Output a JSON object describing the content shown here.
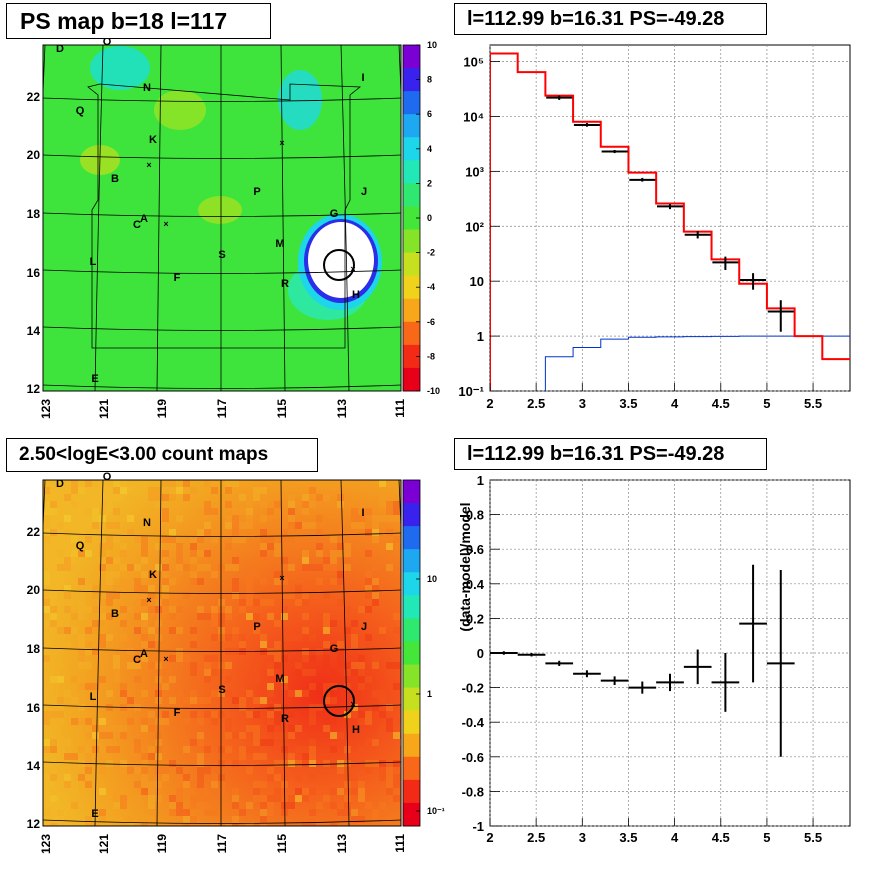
{
  "colors": {
    "map_background": "#3ee43c",
    "count_background": "#f08a28",
    "hist_total": "#ff0000",
    "hist_data": "#000000",
    "hist_blue": "#0033cc",
    "grid": "#888888"
  },
  "colorbar_psmap": {
    "stops": [
      "#7a00d4",
      "#3a22ee",
      "#1f6bf0",
      "#1ea8f2",
      "#1ed6ea",
      "#22e8b8",
      "#2ee870",
      "#44e63a",
      "#86e428",
      "#c6e020",
      "#f0d21c",
      "#f8a61a",
      "#f86818",
      "#f22a16",
      "#e8001a"
    ],
    "labels": [
      "10",
      "8",
      "6",
      "4",
      "2",
      "0",
      "-2",
      "-4",
      "-6",
      "-8",
      "-10"
    ]
  },
  "colorbar_counts": {
    "stops": [
      "#7a00d4",
      "#3a22ee",
      "#1f6bf0",
      "#1ea8f2",
      "#1ed6ea",
      "#22e8b8",
      "#2ee870",
      "#44e63a",
      "#86e428",
      "#c6e020",
      "#f0d21c",
      "#f8a61a",
      "#f86818",
      "#f22a16",
      "#e8001a"
    ],
    "labels": [
      "10",
      "1",
      "10⁻¹"
    ]
  },
  "map_axes": {
    "x_ticks": [
      "123",
      "121",
      "119",
      "117",
      "115",
      "113",
      "111"
    ],
    "y_ticks": [
      "22",
      "20",
      "18",
      "16",
      "14",
      "12"
    ]
  },
  "map_labels": [
    "D",
    "O",
    "N",
    "I",
    "Q",
    "K",
    "B",
    "J",
    "P",
    "G",
    "A",
    "C",
    "M",
    "L",
    "S",
    "F",
    "R",
    "H",
    "E"
  ],
  "panels": {
    "tl_title": "PS map b=18 l=117",
    "tr_title": "l=112.99 b=16.31 PS=-49.28",
    "bl_title": "2.50<logE<3.00 count maps",
    "br_title": "l=112.99 b=16.31 PS=-49.28"
  },
  "chart_data": [
    {
      "type": "heatmap",
      "title": "PS map b=18 l=117",
      "xlabel": "",
      "ylabel": "",
      "xlim": [
        123,
        111
      ],
      "ylim": [
        12,
        24
      ],
      "zlim": [
        -10,
        10
      ],
      "source": {
        "l": 112.99,
        "b": 16.31
      }
    },
    {
      "type": "line",
      "title": "l=112.99 b=16.31 PS=-49.28",
      "xlim": [
        2,
        5.9
      ],
      "ylim": [
        0.1,
        200000
      ],
      "yscale": "log",
      "x_ticks": [
        "2",
        "2.5",
        "3",
        "3.5",
        "4",
        "4.5",
        "5",
        "5.5"
      ],
      "y_ticks": [
        "10⁻¹",
        "1",
        "10",
        "10²",
        "10³",
        "10⁴",
        "10⁵"
      ],
      "series": [
        {
          "kind": "step",
          "edges": [
            2.0,
            2.3,
            2.6,
            2.9,
            3.2,
            3.5,
            3.8,
            4.1,
            4.4,
            4.7,
            5.0,
            5.3,
            5.6,
            5.9
          ],
          "values": [
            140000,
            64000,
            24000,
            8000,
            2800,
            950,
            260,
            80,
            25,
            9,
            3.2,
            1.0,
            0.38
          ]
        },
        {
          "kind": "step-blue",
          "edges": [
            2.6,
            2.9,
            3.2,
            3.5,
            3.8,
            4.1,
            4.4,
            4.7,
            5.0,
            5.3,
            5.6,
            5.9
          ],
          "values": [
            0.42,
            0.62,
            0.88,
            0.95,
            0.97,
            0.98,
            0.99,
            1.0,
            1.0,
            1.0,
            1.0
          ]
        },
        {
          "kind": "points",
          "x": [
            2.75,
            3.05,
            3.35,
            3.65,
            3.95,
            4.25,
            4.55,
            4.85,
            5.15
          ],
          "y": [
            22000,
            7000,
            2300,
            700,
            230,
            70,
            22,
            10.5,
            2.8
          ],
          "yerr_low": [
            20000,
            6500,
            2150,
            650,
            205,
            60,
            16,
            7,
            1.2
          ],
          "yerr_high": [
            24000,
            7600,
            2450,
            760,
            255,
            82,
            28,
            14,
            4.5
          ]
        }
      ]
    },
    {
      "type": "heatmap",
      "title": "2.50<logE<3.00 count maps",
      "xlim": [
        123,
        111
      ],
      "ylim": [
        12,
        24
      ],
      "zlim": [
        0.05,
        40
      ],
      "zscale": "log",
      "source": {
        "l": 112.99,
        "b": 16.31
      }
    },
    {
      "type": "scatter",
      "title": "l=112.99 b=16.31 PS=-49.28",
      "xlabel": "",
      "ylabel": "(data-model)/model",
      "xlim": [
        2,
        5.9
      ],
      "ylim": [
        -1,
        1
      ],
      "x_ticks": [
        "2",
        "2.5",
        "3",
        "3.5",
        "4",
        "4.5",
        "5",
        "5.5"
      ],
      "y_ticks": [
        "1",
        "0.8",
        "0.6",
        "0.4",
        "0.2",
        "0",
        "-0.2",
        "-0.4",
        "-0.6",
        "-0.8",
        "-1"
      ],
      "x": [
        2.15,
        2.45,
        2.75,
        3.05,
        3.35,
        3.65,
        3.95,
        4.25,
        4.55,
        4.85,
        5.15
      ],
      "y": [
        0.0,
        -0.01,
        -0.06,
        -0.12,
        -0.16,
        -0.2,
        -0.17,
        -0.08,
        -0.17,
        0.17,
        -0.06
      ],
      "yerr": [
        0.01,
        0.01,
        0.015,
        0.02,
        0.025,
        0.035,
        0.05,
        0.1,
        0.17,
        0.34,
        0.54
      ],
      "xerr": [
        0.15,
        0.15,
        0.15,
        0.15,
        0.15,
        0.15,
        0.15,
        0.15,
        0.15,
        0.15,
        0.15
      ]
    }
  ]
}
